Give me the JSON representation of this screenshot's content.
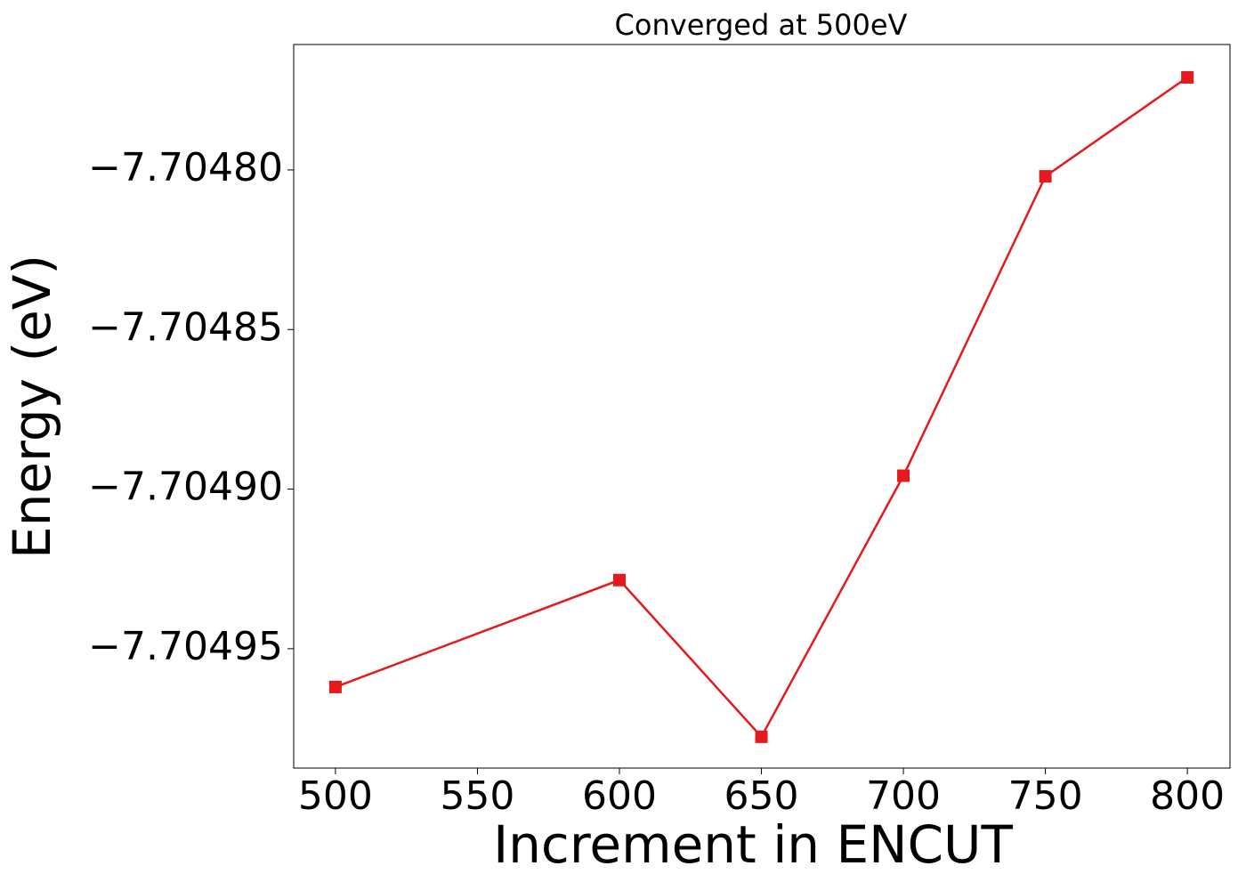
{
  "chart_data": {
    "type": "line",
    "title": "Converged at 500eV",
    "x_label": "Increment in ENCUT",
    "y_label": "Energy (eV)",
    "x": [
      500,
      600,
      650,
      700,
      750,
      800
    ],
    "series": [
      {
        "color": "#e41a1c",
        "marker": "square",
        "values": [
          -7.704962,
          -7.7049285,
          -7.7049776,
          -7.7048958,
          -7.704802,
          -7.704771
        ]
      }
    ],
    "xlim": [
      485.3,
      815
    ],
    "xticks": [
      500,
      550,
      600,
      650,
      700,
      750,
      800
    ],
    "ylim": [
      -7.7049874,
      -7.7047607
    ],
    "yticks": [
      {
        "value": -7.70495,
        "label": "−7.70495"
      },
      {
        "value": -7.7049,
        "label": "−7.70490"
      },
      {
        "value": -7.70485,
        "label": "−7.70485"
      },
      {
        "value": -7.7048,
        "label": "−7.70480"
      }
    ],
    "grid": false
  }
}
